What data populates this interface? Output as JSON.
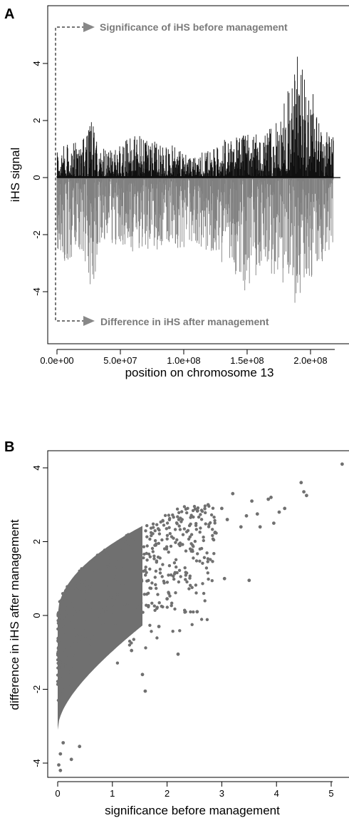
{
  "chart_data": [
    {
      "panel": "A",
      "type": "bar",
      "xlabel": "position on chromosome 13",
      "ylabel": "iHS signal",
      "xlim": [
        -10000000.0,
        230000000.0
      ],
      "ylim": [
        -5.5,
        5.5
      ],
      "x_ticks": [
        0,
        50000000.0,
        100000000.0,
        150000000.0,
        200000000.0
      ],
      "x_tick_labels": [
        "0.0e+00",
        "5.0e+07",
        "1.0e+08",
        "1.5e+08",
        "2.0e+08"
      ],
      "y_ticks": [
        -4,
        -2,
        0,
        2,
        4
      ],
      "y_tick_labels": [
        "-4",
        "-2",
        "0",
        "2",
        "4"
      ],
      "x_range_data": [
        0,
        218000000.0
      ],
      "series": [
        {
          "name": "Significance of iHS before management",
          "color": "#111111",
          "profile_x": [
            0,
            10000000.0,
            20000000.0,
            27000000.0,
            35000000.0,
            50000000.0,
            60000000.0,
            80000000.0,
            95000000.0,
            105000000.0,
            120000000.0,
            135000000.0,
            150000000.0,
            165000000.0,
            175000000.0,
            185000000.0,
            190000000.0,
            200000000.0,
            210000000.0,
            218000000.0
          ],
          "profile_envelope": [
            1.0,
            1.2,
            1.3,
            2.0,
            1.0,
            1.1,
            1.6,
            1.2,
            1.1,
            0.7,
            1.0,
            1.4,
            1.5,
            1.6,
            2.0,
            3.6,
            4.4,
            3.2,
            1.9,
            1.4
          ]
        },
        {
          "name": "Difference in iHS after management",
          "color": "#808080",
          "profile_x": [
            0,
            10000000.0,
            20000000.0,
            27000000.0,
            35000000.0,
            50000000.0,
            60000000.0,
            80000000.0,
            95000000.0,
            105000000.0,
            120000000.0,
            135000000.0,
            150000000.0,
            165000000.0,
            175000000.0,
            185000000.0,
            190000000.0,
            200000000.0,
            210000000.0,
            218000000.0
          ],
          "profile_envelope": [
            -2.5,
            -3.2,
            -2.6,
            -4.0,
            -2.2,
            -2.4,
            -2.6,
            -2.4,
            -2.6,
            -2.2,
            -2.6,
            -3.0,
            -4.2,
            -3.0,
            -3.6,
            -4.0,
            -4.5,
            -3.6,
            -2.8,
            -2.4
          ]
        }
      ],
      "annotations": [
        "Significance  of iHS before management",
        "Difference in iHS after management"
      ]
    },
    {
      "panel": "B",
      "type": "scatter",
      "xlabel": "significance before management",
      "ylabel": "difference in iHS after management",
      "xlim": [
        -0.2,
        5.3
      ],
      "ylim": [
        -4.6,
        4.6
      ],
      "x_ticks": [
        0,
        1,
        2,
        3,
        4,
        5
      ],
      "x_tick_labels": [
        "0",
        "1",
        "2",
        "3",
        "4",
        "5"
      ],
      "y_ticks": [
        -4,
        -2,
        0,
        2,
        4
      ],
      "y_tick_labels": [
        "-4",
        "-2",
        "0",
        "2",
        "4"
      ],
      "color": "#707070",
      "outlier_points": [
        [
          5.2,
          4.1
        ],
        [
          4.45,
          3.6
        ],
        [
          4.5,
          3.35
        ],
        [
          4.55,
          3.25
        ],
        [
          3.9,
          3.2
        ],
        [
          3.55,
          3.1
        ],
        [
          3.2,
          3.3
        ],
        [
          3.85,
          3.15
        ],
        [
          4.15,
          2.9
        ],
        [
          4.05,
          2.8
        ],
        [
          3.65,
          2.75
        ],
        [
          3.45,
          2.7
        ],
        [
          3.7,
          2.4
        ],
        [
          3.95,
          2.5
        ],
        [
          3.35,
          2.4
        ],
        [
          3.0,
          2.9
        ],
        [
          2.75,
          3.0
        ],
        [
          3.1,
          2.6
        ],
        [
          3.5,
          0.95
        ],
        [
          3.05,
          1.0
        ],
        [
          2.55,
          0.1
        ],
        [
          2.2,
          -1.05
        ],
        [
          1.6,
          -2.05
        ],
        [
          1.55,
          -1.6
        ],
        [
          0.05,
          -4.2
        ],
        [
          0.02,
          -4.05
        ],
        [
          0.25,
          -3.9
        ],
        [
          0.4,
          -3.55
        ],
        [
          0.05,
          -3.75
        ],
        [
          0.1,
          -3.45
        ],
        [
          2.0,
          0.45
        ],
        [
          1.85,
          -0.3
        ],
        [
          1.35,
          -0.95
        ]
      ]
    }
  ]
}
